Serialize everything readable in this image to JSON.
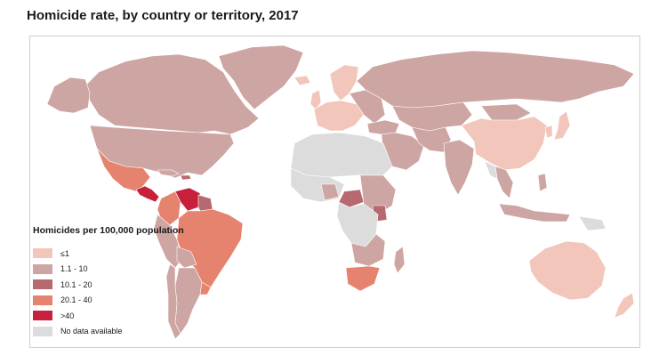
{
  "title": "Homicide rate, by country or territory, 2017",
  "legend": {
    "title": "Homicides per 100,000 population",
    "items": [
      {
        "label": "≤1",
        "color": "#f2c6bb"
      },
      {
        "label": "1.1 - 10",
        "color": "#cda5a2"
      },
      {
        "label": "10.1 - 20",
        "color": "#b6696e"
      },
      {
        "label": "20.1 - 40",
        "color": "#e6836e"
      },
      {
        "label": ">40",
        "color": "#c8203a"
      },
      {
        "label": "No data available",
        "color": "#dcdcdc"
      }
    ]
  },
  "colors": {
    "ocean": "#ffffff",
    "border": "#ffffff",
    "frame": "#cfcfcf"
  }
}
